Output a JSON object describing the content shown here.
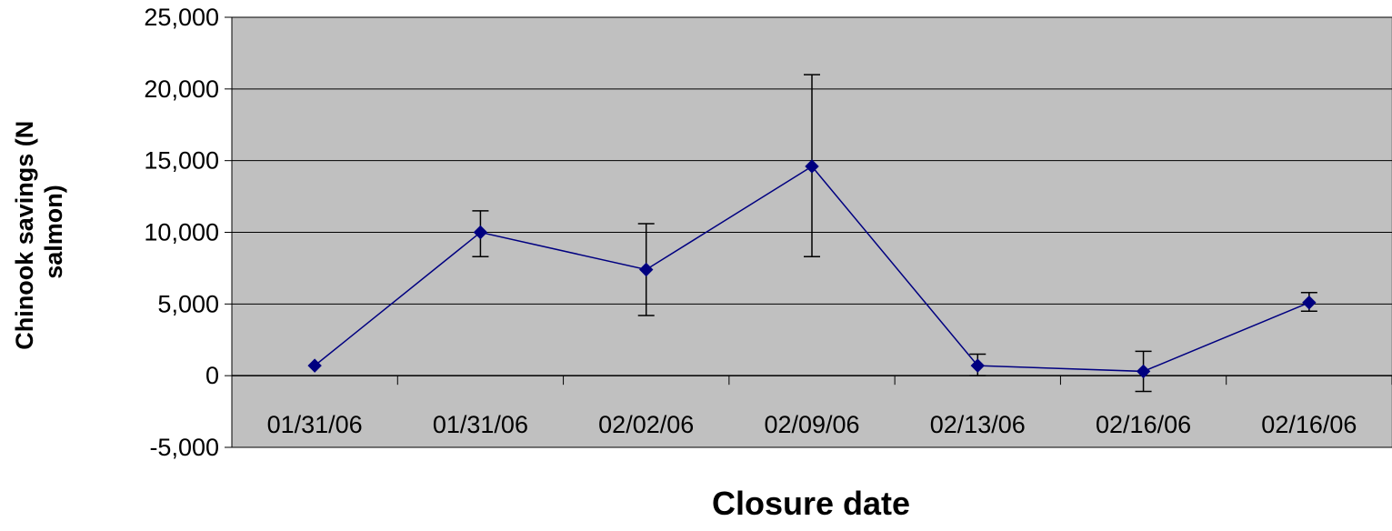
{
  "chart_data": {
    "type": "line",
    "title": "",
    "xlabel": "Closure date",
    "ylabel_lines": [
      "Chinook savings (N",
      "salmon)"
    ],
    "categories": [
      "01/31/06",
      "01/31/06",
      "02/02/06",
      "02/09/06",
      "02/13/06",
      "02/16/06",
      "02/16/06"
    ],
    "series": [
      {
        "values": [
          700,
          10000,
          7400,
          14600,
          700,
          300,
          5100
        ],
        "error_low": [
          null,
          8300,
          4200,
          8300,
          0,
          -1100,
          4500
        ],
        "error_high": [
          null,
          11500,
          10600,
          21000,
          1500,
          1700,
          5800
        ],
        "color": "#000080"
      }
    ],
    "ylim": [
      -5000,
      25000
    ],
    "yticks": [
      -5000,
      0,
      5000,
      10000,
      15000,
      20000,
      25000
    ],
    "ytick_labels": [
      "-5,000",
      "0",
      "5,000",
      "10,000",
      "15,000",
      "20,000",
      "25,000"
    ],
    "grid": true,
    "legend": "none",
    "colors": {
      "plot_background": "#c0c0c0",
      "gridline": "#000000",
      "series": "#000080",
      "error_bar": "#000000"
    }
  }
}
